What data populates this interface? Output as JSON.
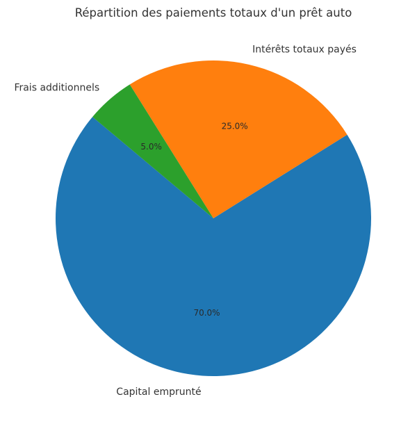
{
  "chart_data": {
    "type": "pie",
    "title": "Répartition des paiements totaux d'un prêt auto",
    "start_angle_deg": 140,
    "direction": "counterclockwise",
    "slices": [
      {
        "label": "Capital emprunté",
        "value": 70.0,
        "pct_text": "70.0%",
        "color": "#1f77b4"
      },
      {
        "label": "Intérêts totaux payés",
        "value": 25.0,
        "pct_text": "25.0%",
        "color": "#ff7f0e"
      },
      {
        "label": "Frais additionnels",
        "value": 5.0,
        "pct_text": "5.0%",
        "color": "#2ca02c"
      }
    ]
  }
}
